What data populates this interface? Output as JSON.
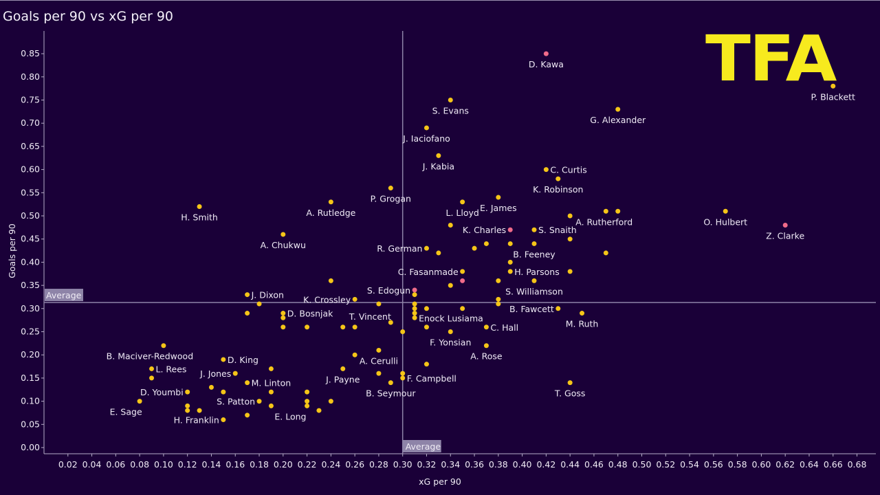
{
  "chart_data": {
    "type": "scatter",
    "title": "Goals per 90 vs xG per 90",
    "xlabel": "xG per 90",
    "ylabel": "Goals per 90",
    "xlim": [
      0.0,
      0.69
    ],
    "ylim": [
      0.0,
      0.87
    ],
    "x_ticks": [
      "0.02",
      "0.04",
      "0.06",
      "0.08",
      "0.10",
      "0.12",
      "0.14",
      "0.16",
      "0.18",
      "0.20",
      "0.22",
      "0.24",
      "0.26",
      "0.28",
      "0.30",
      "0.32",
      "0.34",
      "0.36",
      "0.38",
      "0.40",
      "0.42",
      "0.44",
      "0.46",
      "0.48",
      "0.50",
      "0.52",
      "0.54",
      "0.56",
      "0.58",
      "0.60",
      "0.62",
      "0.64",
      "0.66",
      "0.68"
    ],
    "y_ticks": [
      "0.00",
      "0.05",
      "0.10",
      "0.15",
      "0.20",
      "0.25",
      "0.30",
      "0.35",
      "0.40",
      "0.45",
      "0.50",
      "0.55",
      "0.60",
      "0.65",
      "0.70",
      "0.75",
      "0.80",
      "0.85"
    ],
    "grid": false,
    "reference_lines": [
      {
        "axis": "x",
        "value": 0.3,
        "label": "Average"
      },
      {
        "axis": "y",
        "value": 0.313,
        "label": "Average"
      }
    ],
    "colors": {
      "default": "#f5c518",
      "highlight": "#f06b8a",
      "background": "#1a0038",
      "logo": "#f7ea1e"
    },
    "logo_text": "TFA",
    "points": [
      {
        "x": 0.42,
        "y": 0.85,
        "label": "D. Kawa",
        "hl": true,
        "pos": "below"
      },
      {
        "x": 0.66,
        "y": 0.78,
        "label": "P. Blackett",
        "pos": "below"
      },
      {
        "x": 0.34,
        "y": 0.75,
        "label": "S. Evans",
        "pos": "below"
      },
      {
        "x": 0.48,
        "y": 0.73,
        "label": "G. Alexander",
        "pos": "below"
      },
      {
        "x": 0.32,
        "y": 0.69,
        "label": "J. Iaciofano",
        "pos": "below"
      },
      {
        "x": 0.33,
        "y": 0.63,
        "label": "J. Kabia",
        "pos": "below"
      },
      {
        "x": 0.42,
        "y": 0.6,
        "label": "C. Curtis",
        "pos": "right"
      },
      {
        "x": 0.43,
        "y": 0.58,
        "label": "K. Robinson",
        "pos": "below"
      },
      {
        "x": 0.29,
        "y": 0.56,
        "label": "P. Grogan",
        "pos": "below"
      },
      {
        "x": 0.38,
        "y": 0.54,
        "label": "E. James",
        "pos": "below"
      },
      {
        "x": 0.24,
        "y": 0.53,
        "label": "A. Rutledge",
        "pos": "below"
      },
      {
        "x": 0.35,
        "y": 0.53,
        "label": "L. Lloyd",
        "pos": "below"
      },
      {
        "x": 0.13,
        "y": 0.52,
        "label": "H. Smith",
        "pos": "below"
      },
      {
        "x": 0.47,
        "y": 0.51,
        "label": ""
      },
      {
        "x": 0.48,
        "y": 0.51,
        "label": "A. Rutherford",
        "pos": "belowleft"
      },
      {
        "x": 0.57,
        "y": 0.51,
        "label": "O. Hulbert",
        "pos": "below"
      },
      {
        "x": 0.44,
        "y": 0.5,
        "label": ""
      },
      {
        "x": 0.62,
        "y": 0.48,
        "label": "Z. Clarke",
        "hl": true,
        "pos": "below"
      },
      {
        "x": 0.34,
        "y": 0.48,
        "label": ""
      },
      {
        "x": 0.39,
        "y": 0.47,
        "label": "K. Charles",
        "hl": true,
        "pos": "left"
      },
      {
        "x": 0.41,
        "y": 0.47,
        "label": "S. Snaith",
        "pos": "right"
      },
      {
        "x": 0.2,
        "y": 0.46,
        "label": "A. Chukwu",
        "pos": "below"
      },
      {
        "x": 0.44,
        "y": 0.45,
        "label": ""
      },
      {
        "x": 0.37,
        "y": 0.44,
        "label": ""
      },
      {
        "x": 0.39,
        "y": 0.44,
        "label": ""
      },
      {
        "x": 0.41,
        "y": 0.44,
        "label": "B. Feeney",
        "pos": "below"
      },
      {
        "x": 0.32,
        "y": 0.43,
        "label": "R. German",
        "pos": "left"
      },
      {
        "x": 0.36,
        "y": 0.43,
        "label": ""
      },
      {
        "x": 0.33,
        "y": 0.42,
        "label": ""
      },
      {
        "x": 0.47,
        "y": 0.42,
        "label": ""
      },
      {
        "x": 0.39,
        "y": 0.4,
        "label": ""
      },
      {
        "x": 0.35,
        "y": 0.38,
        "label": "C. Fasanmade",
        "pos": "left"
      },
      {
        "x": 0.39,
        "y": 0.38,
        "label": "H. Parsons",
        "pos": "right"
      },
      {
        "x": 0.44,
        "y": 0.38,
        "label": ""
      },
      {
        "x": 0.24,
        "y": 0.36,
        "label": ""
      },
      {
        "x": 0.35,
        "y": 0.36,
        "label": "",
        "hl": true
      },
      {
        "x": 0.38,
        "y": 0.36,
        "label": ""
      },
      {
        "x": 0.41,
        "y": 0.36,
        "label": "S. Williamson",
        "pos": "below"
      },
      {
        "x": 0.34,
        "y": 0.35,
        "label": ""
      },
      {
        "x": 0.31,
        "y": 0.34,
        "label": "S. Edogun",
        "hl": true,
        "pos": "left"
      },
      {
        "x": 0.17,
        "y": 0.33,
        "label": "J. Dixon",
        "pos": "right"
      },
      {
        "x": 0.31,
        "y": 0.33,
        "label": ""
      },
      {
        "x": 0.26,
        "y": 0.32,
        "label": "K. Crossley",
        "pos": "left"
      },
      {
        "x": 0.38,
        "y": 0.32,
        "label": ""
      },
      {
        "x": 0.18,
        "y": 0.31,
        "label": ""
      },
      {
        "x": 0.28,
        "y": 0.31,
        "label": ""
      },
      {
        "x": 0.31,
        "y": 0.31,
        "label": ""
      },
      {
        "x": 0.38,
        "y": 0.31,
        "label": ""
      },
      {
        "x": 0.31,
        "y": 0.3,
        "label": ""
      },
      {
        "x": 0.32,
        "y": 0.3,
        "label": ""
      },
      {
        "x": 0.35,
        "y": 0.3,
        "label": ""
      },
      {
        "x": 0.43,
        "y": 0.3,
        "label": "B. Fawcett",
        "pos": "left"
      },
      {
        "x": 0.17,
        "y": 0.29,
        "label": ""
      },
      {
        "x": 0.2,
        "y": 0.29,
        "label": "D. Bosnjak",
        "pos": "right"
      },
      {
        "x": 0.31,
        "y": 0.29,
        "label": ""
      },
      {
        "x": 0.45,
        "y": 0.29,
        "label": "M. Ruth",
        "pos": "below"
      },
      {
        "x": 0.2,
        "y": 0.28,
        "label": ""
      },
      {
        "x": 0.31,
        "y": 0.28,
        "label": "Enock Lusiama",
        "pos": "right"
      },
      {
        "x": 0.29,
        "y": 0.27,
        "label": "T. Vincent",
        "pos": "aboveleft"
      },
      {
        "x": 0.2,
        "y": 0.26,
        "label": ""
      },
      {
        "x": 0.22,
        "y": 0.26,
        "label": ""
      },
      {
        "x": 0.25,
        "y": 0.26,
        "label": ""
      },
      {
        "x": 0.26,
        "y": 0.26,
        "label": ""
      },
      {
        "x": 0.32,
        "y": 0.26,
        "label": ""
      },
      {
        "x": 0.37,
        "y": 0.26,
        "label": "C. Hall",
        "pos": "right"
      },
      {
        "x": 0.3,
        "y": 0.25,
        "label": ""
      },
      {
        "x": 0.34,
        "y": 0.25,
        "label": "F. Yonsian",
        "pos": "below"
      },
      {
        "x": 0.1,
        "y": 0.22,
        "label": "B. Maciver-Redwood",
        "pos": "belowleft"
      },
      {
        "x": 0.37,
        "y": 0.22,
        "label": "A. Rose",
        "pos": "below"
      },
      {
        "x": 0.28,
        "y": 0.21,
        "label": "A. Cerulli",
        "pos": "below"
      },
      {
        "x": 0.26,
        "y": 0.2,
        "label": ""
      },
      {
        "x": 0.15,
        "y": 0.19,
        "label": "D. King",
        "pos": "right"
      },
      {
        "x": 0.32,
        "y": 0.18,
        "label": ""
      },
      {
        "x": 0.09,
        "y": 0.17,
        "label": "L. Rees",
        "pos": "right"
      },
      {
        "x": 0.19,
        "y": 0.17,
        "label": ""
      },
      {
        "x": 0.25,
        "y": 0.17,
        "label": "J. Payne",
        "pos": "below"
      },
      {
        "x": 0.16,
        "y": 0.16,
        "label": "J. Jones",
        "pos": "left"
      },
      {
        "x": 0.28,
        "y": 0.16,
        "label": ""
      },
      {
        "x": 0.3,
        "y": 0.16,
        "label": ""
      },
      {
        "x": 0.09,
        "y": 0.15,
        "label": ""
      },
      {
        "x": 0.3,
        "y": 0.15,
        "label": "F. Campbell",
        "pos": "right"
      },
      {
        "x": 0.17,
        "y": 0.14,
        "label": "M. Linton",
        "pos": "right"
      },
      {
        "x": 0.29,
        "y": 0.14,
        "label": "B. Seymour",
        "pos": "below"
      },
      {
        "x": 0.44,
        "y": 0.14,
        "label": "T. Goss",
        "pos": "below"
      },
      {
        "x": 0.14,
        "y": 0.13,
        "label": ""
      },
      {
        "x": 0.12,
        "y": 0.12,
        "label": "D. Youmbi",
        "pos": "left"
      },
      {
        "x": 0.15,
        "y": 0.12,
        "label": ""
      },
      {
        "x": 0.19,
        "y": 0.12,
        "label": ""
      },
      {
        "x": 0.22,
        "y": 0.12,
        "label": ""
      },
      {
        "x": 0.08,
        "y": 0.1,
        "label": "E. Sage",
        "pos": "belowleft"
      },
      {
        "x": 0.18,
        "y": 0.1,
        "label": "S. Patton",
        "pos": "left"
      },
      {
        "x": 0.22,
        "y": 0.1,
        "label": ""
      },
      {
        "x": 0.24,
        "y": 0.1,
        "label": ""
      },
      {
        "x": 0.12,
        "y": 0.09,
        "label": ""
      },
      {
        "x": 0.19,
        "y": 0.09,
        "label": "E. Long",
        "pos": "belowright"
      },
      {
        "x": 0.22,
        "y": 0.09,
        "label": ""
      },
      {
        "x": 0.12,
        "y": 0.08,
        "label": ""
      },
      {
        "x": 0.13,
        "y": 0.08,
        "label": ""
      },
      {
        "x": 0.23,
        "y": 0.08,
        "label": ""
      },
      {
        "x": 0.17,
        "y": 0.07,
        "label": ""
      },
      {
        "x": 0.15,
        "y": 0.06,
        "label": "H. Franklin",
        "pos": "left"
      }
    ]
  }
}
